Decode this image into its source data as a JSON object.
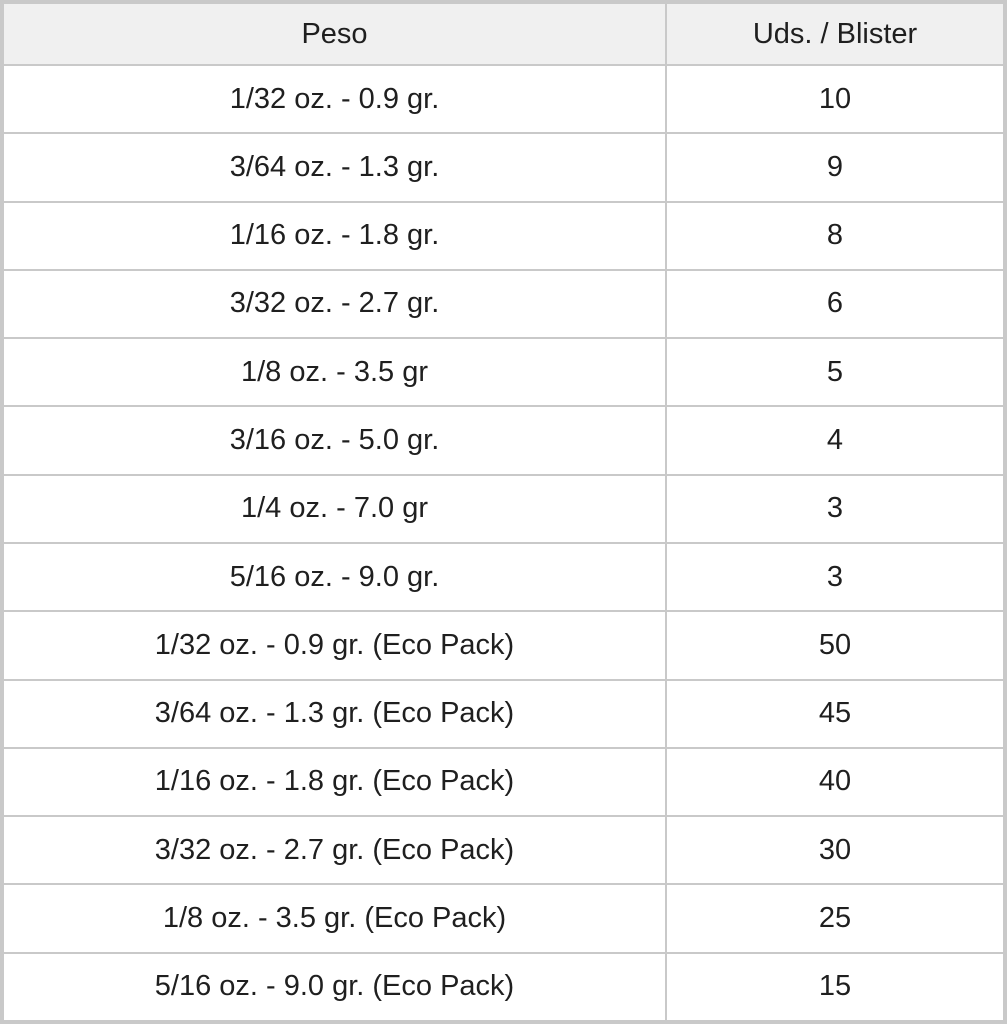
{
  "colors": {
    "header_bg": "#f0f0f0",
    "row_bg": "#ffffff",
    "grid_border": "#c9c9c9",
    "text": "#1f1f1f"
  },
  "table": {
    "columns": {
      "peso_label": "Peso",
      "uds_label": "Uds. / Blister"
    },
    "rows": [
      {
        "peso": "1/32 oz. - 0.9 gr.",
        "uds": "10"
      },
      {
        "peso": "3/64 oz. - 1.3 gr.",
        "uds": "9"
      },
      {
        "peso": "1/16 oz. - 1.8 gr.",
        "uds": "8"
      },
      {
        "peso": "3/32 oz. - 2.7 gr.",
        "uds": "6"
      },
      {
        "peso": "1/8 oz. - 3.5 gr",
        "uds": "5"
      },
      {
        "peso": "3/16 oz. - 5.0 gr.",
        "uds": "4"
      },
      {
        "peso": "1/4 oz. - 7.0 gr",
        "uds": "3"
      },
      {
        "peso": "5/16 oz. - 9.0 gr.",
        "uds": "3"
      },
      {
        "peso": "1/32 oz. - 0.9 gr. (Eco Pack)",
        "uds": "50"
      },
      {
        "peso": "3/64 oz. - 1.3 gr. (Eco Pack)",
        "uds": "45"
      },
      {
        "peso": "1/16 oz. - 1.8 gr. (Eco Pack)",
        "uds": "40"
      },
      {
        "peso": "3/32 oz. - 2.7 gr. (Eco Pack)",
        "uds": "30"
      },
      {
        "peso": "1/8 oz. - 3.5 gr. (Eco Pack)",
        "uds": "25"
      },
      {
        "peso": "5/16 oz. - 9.0 gr. (Eco Pack)",
        "uds": "15"
      }
    ]
  },
  "chart_data": {
    "type": "table",
    "columns": [
      "Peso",
      "Uds. / Blister"
    ],
    "rows": [
      [
        "1/32 oz. - 0.9 gr.",
        10
      ],
      [
        "3/64 oz. - 1.3 gr.",
        9
      ],
      [
        "1/16 oz. - 1.8 gr.",
        8
      ],
      [
        "3/32 oz. - 2.7 gr.",
        6
      ],
      [
        "1/8 oz. - 3.5 gr",
        5
      ],
      [
        "3/16 oz. - 5.0 gr.",
        4
      ],
      [
        "1/4 oz. - 7.0 gr",
        3
      ],
      [
        "5/16 oz. - 9.0 gr.",
        3
      ],
      [
        "1/32 oz. - 0.9 gr. (Eco Pack)",
        50
      ],
      [
        "3/64 oz. - 1.3 gr. (Eco Pack)",
        45
      ],
      [
        "1/16 oz. - 1.8 gr. (Eco Pack)",
        40
      ],
      [
        "3/32 oz. - 2.7 gr. (Eco Pack)",
        30
      ],
      [
        "1/8 oz. - 3.5 gr. (Eco Pack)",
        25
      ],
      [
        "5/16 oz. - 9.0 gr. (Eco Pack)",
        15
      ]
    ]
  }
}
